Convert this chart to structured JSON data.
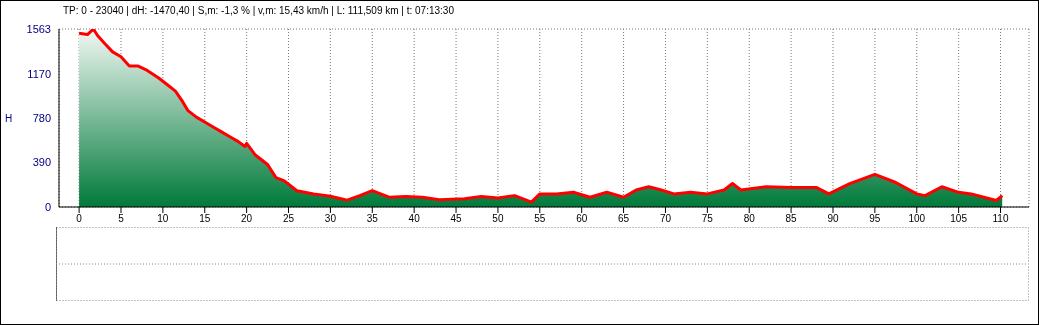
{
  "chart_data": {
    "type": "area",
    "title": "TP: 0 - 23040 | dH: -1470,40   | S,m: -1,3 % | v,m: 15,43 km/h | L: 111,509 km | t: 07:13:30",
    "ylabel": "H",
    "x": [
      0,
      1,
      1.7,
      2.2,
      3,
      4,
      5,
      6,
      7,
      8,
      9.5,
      10.5,
      11.5,
      12.3,
      13,
      14,
      15,
      16,
      17,
      18,
      19,
      19.8,
      20,
      21,
      22.5,
      23.5,
      24.5,
      26,
      28,
      30,
      32,
      33.5,
      35,
      37,
      39,
      41,
      43,
      46,
      48,
      50,
      52,
      54,
      55,
      57,
      59,
      61,
      63,
      65,
      66.5,
      68,
      69.5,
      71,
      73,
      75,
      77,
      78,
      79,
      82,
      85,
      88,
      89.5,
      92,
      95,
      97.5,
      100,
      101,
      103,
      105,
      106.5,
      108,
      109.5,
      110.2
    ],
    "series": [
      {
        "color": "#ff0000",
        "values": [
          1526,
          1514,
          1563,
          1506,
          1440,
          1362,
          1319,
          1239,
          1239,
          1205,
          1133,
          1076,
          1018,
          932,
          846,
          789,
          746,
          703,
          660,
          617,
          574,
          531,
          559,
          459,
          373,
          258,
          229,
          143,
          115,
          95,
          60,
          100,
          143,
          86,
          92,
          86,
          63,
          72,
          92,
          80,
          100,
          43,
          115,
          115,
          129,
          86,
          129,
          86,
          149,
          178,
          149,
          115,
          129,
          115,
          149,
          206,
          149,
          178,
          172,
          172,
          115,
          206,
          287,
          215,
          115,
          100,
          178,
          129,
          115,
          86,
          57,
          100
        ]
      }
    ],
    "xlim": [
      -2.4,
      113.4
    ],
    "xticks": [
      0,
      5,
      10,
      15,
      20,
      25,
      30,
      35,
      40,
      45,
      50,
      55,
      60,
      65,
      70,
      75,
      80,
      85,
      90,
      95,
      100,
      105,
      110
    ],
    "ylim": [
      0,
      1563
    ],
    "yticks": [
      0,
      390,
      780,
      1170,
      1563
    ],
    "grid": true
  }
}
